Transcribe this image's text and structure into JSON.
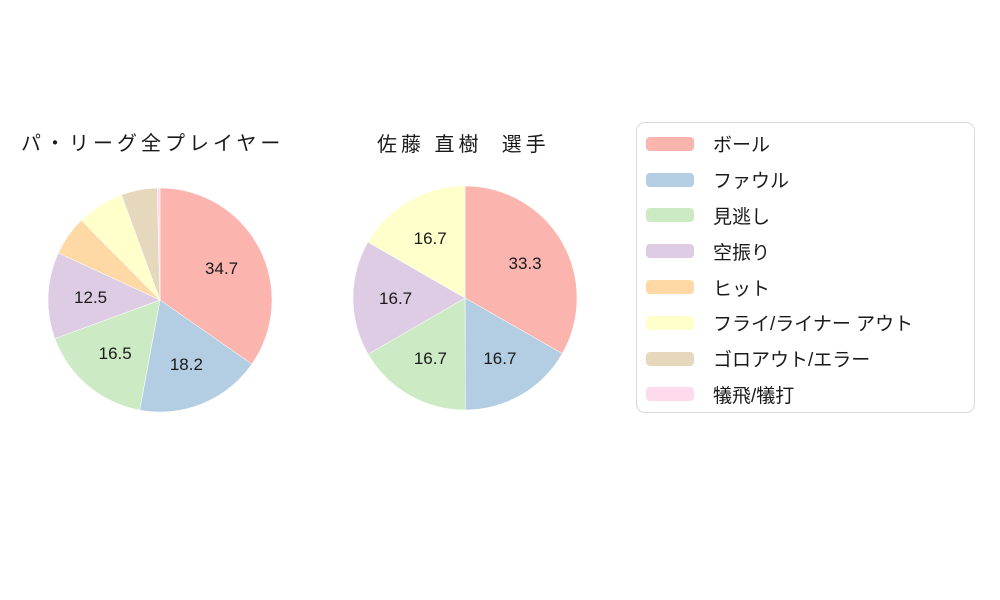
{
  "page": {
    "background_color": "#ffffff",
    "text_color": "#1a1a1a"
  },
  "colors": [
    "#FBB4AE",
    "#B3CDE3",
    "#CCEBC5",
    "#DECBE4",
    "#FED9A6",
    "#FFFFCC",
    "#E5D8BD",
    "#FDDAEC"
  ],
  "chart_data": [
    {
      "type": "pie",
      "title": "パ・リーグ全プレイヤー",
      "labels": [
        "ボール",
        "ファウル",
        "見逃し",
        "空振り",
        "ヒット",
        "フライ/ライナー アウト",
        "ゴロアウト/エラー",
        "犠飛/犠打"
      ],
      "values": [
        34.7,
        18.2,
        16.5,
        12.5,
        5.7,
        6.8,
        5.2,
        0.4
      ],
      "displayed_text": [
        "34.7",
        "18.2",
        "16.5",
        "12.5",
        "",
        "",
        "",
        ""
      ],
      "direction": "clockwise",
      "start_angle_deg": 0,
      "legend_position": "right"
    },
    {
      "type": "pie",
      "title": "佐藤 直樹  選手",
      "labels": [
        "ボール",
        "ファウル",
        "見逃し",
        "空振り",
        "ヒット",
        "フライ/ライナー アウト",
        "ゴロアウト/エラー",
        "犠飛/犠打"
      ],
      "values": [
        33.3,
        16.7,
        16.7,
        16.7,
        0,
        16.7,
        0,
        0
      ],
      "displayed_text": [
        "33.3",
        "16.7",
        "16.7",
        "16.7",
        "",
        "16.7",
        "",
        ""
      ],
      "direction": "clockwise",
      "start_angle_deg": 0,
      "legend_position": "right"
    }
  ],
  "legend": {
    "border_color": "#d9d9d9",
    "items": [
      {
        "label": "ボール",
        "color": "#FBB4AE"
      },
      {
        "label": "ファウル",
        "color": "#B3CDE3"
      },
      {
        "label": "見逃し",
        "color": "#CCEBC5"
      },
      {
        "label": "空振り",
        "color": "#DECBE4"
      },
      {
        "label": "ヒット",
        "color": "#FED9A6"
      },
      {
        "label": "フライ/ライナー アウト",
        "color": "#FFFFCC"
      },
      {
        "label": "ゴロアウト/エラー",
        "color": "#E5D8BD"
      },
      {
        "label": "犠飛/犠打",
        "color": "#FDDAEC"
      }
    ]
  }
}
